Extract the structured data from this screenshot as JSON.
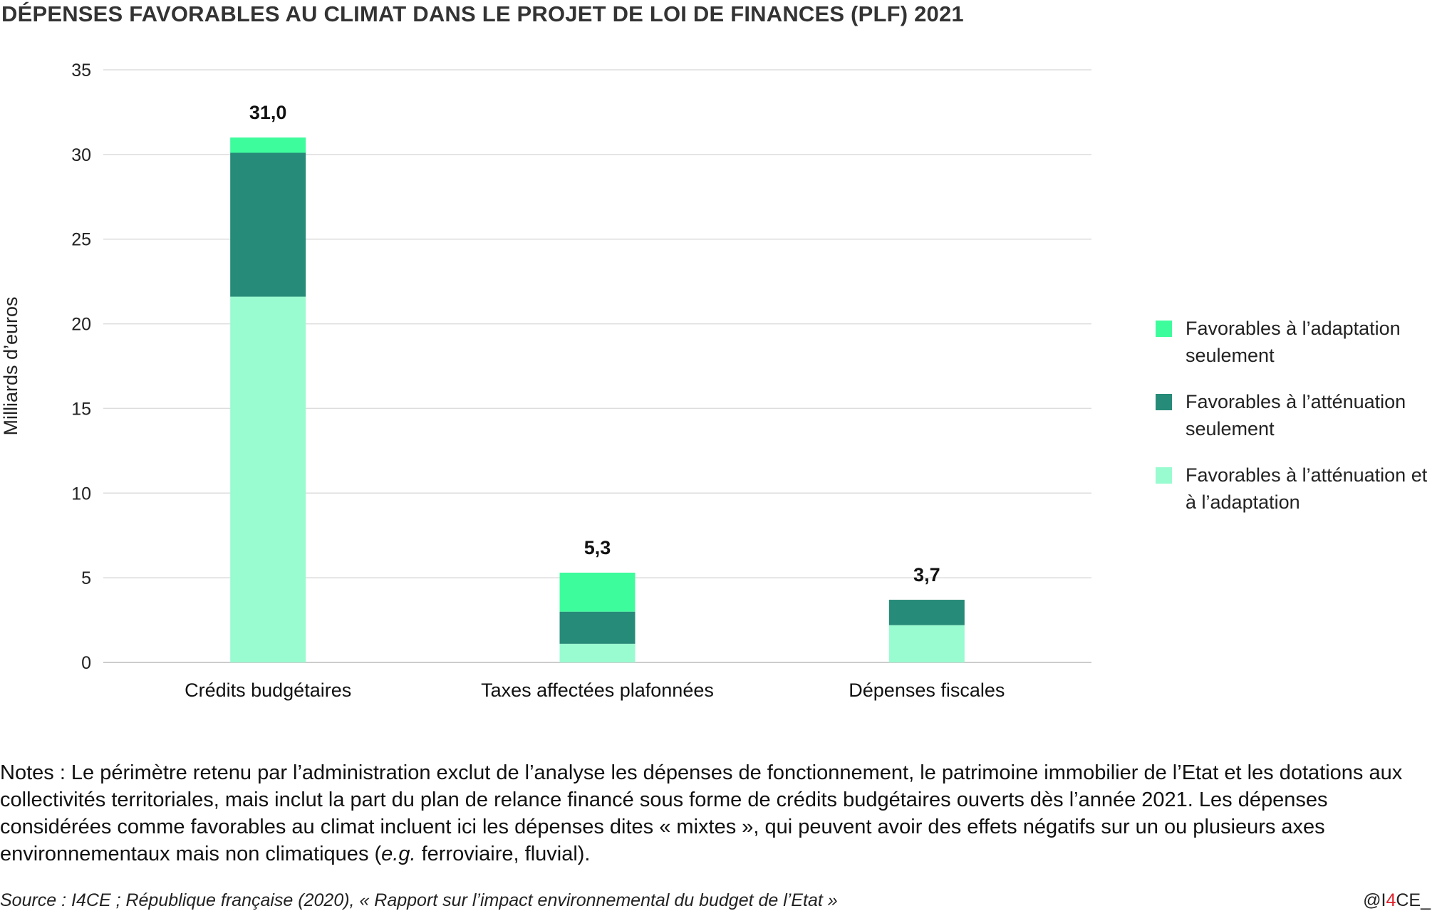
{
  "title": "DÉPENSES FAVORABLES AU CLIMAT DANS LE PROJET DE LOI DE FINANCES (PLF) 2021",
  "chart_data": {
    "type": "bar",
    "stacked": true,
    "title": "DÉPENSES FAVORABLES AU CLIMAT DANS LE PROJET DE LOI DE FINANCES (PLF) 2021",
    "xlabel": "",
    "ylabel": "Milliards d’euros",
    "ylim": [
      0,
      35
    ],
    "yticks": [
      0,
      5,
      10,
      15,
      20,
      25,
      30,
      35
    ],
    "grid": true,
    "legend_position": "right",
    "categories": [
      "Crédits budgétaires",
      "Taxes affectées plafonnées",
      "Dépenses fiscales"
    ],
    "totals": [
      "31,0",
      "5,3",
      "3,7"
    ],
    "series": [
      {
        "name": "Favorables à l’atténuation et à l’adaptation",
        "color": "#99fbd0",
        "values": [
          21.6,
          1.1,
          2.2
        ]
      },
      {
        "name": "Favorables à l’atténuation seulement",
        "color": "#268b78",
        "values": [
          8.5,
          1.9,
          1.5
        ]
      },
      {
        "name": "Favorables à l’adaptation seulement",
        "color": "#3dfc9c",
        "values": [
          0.9,
          2.3,
          0
        ]
      }
    ]
  },
  "legend": [
    {
      "label": "Favorables à l’adaptation seulement",
      "color": "#3dfc9c"
    },
    {
      "label": "Favorables à l’atténuation seulement",
      "color": "#268b78"
    },
    {
      "label": "Favorables à l’atténuation et à l’adaptation",
      "color": "#99fbd0"
    }
  ],
  "notes_prefix": "Notes : Le périmètre retenu par l’administration exclut de l’analyse les dépenses de fonctionnement, le patrimoine immobilier de l’Etat et les dotations aux collectivités territoriales, mais inclut la part du plan de relance financé sous forme de crédits budgétaires ouverts dès l’année 2021. Les dépenses considérées comme favorables au climat incluent ici les dépenses dites « mixtes », qui peuvent avoir des effets négatifs sur un ou plusieurs axes environnementaux mais non climatiques (",
  "notes_italic": "e.g.",
  "notes_suffix": " ferroviaire, fluvial).",
  "source": "Source : I4CE ; République française (2020), « Rapport sur l’impact environnemental du budget de l’Etat »",
  "handle_prefix": "@I",
  "handle_four": "4",
  "handle_suffix": "CE_"
}
